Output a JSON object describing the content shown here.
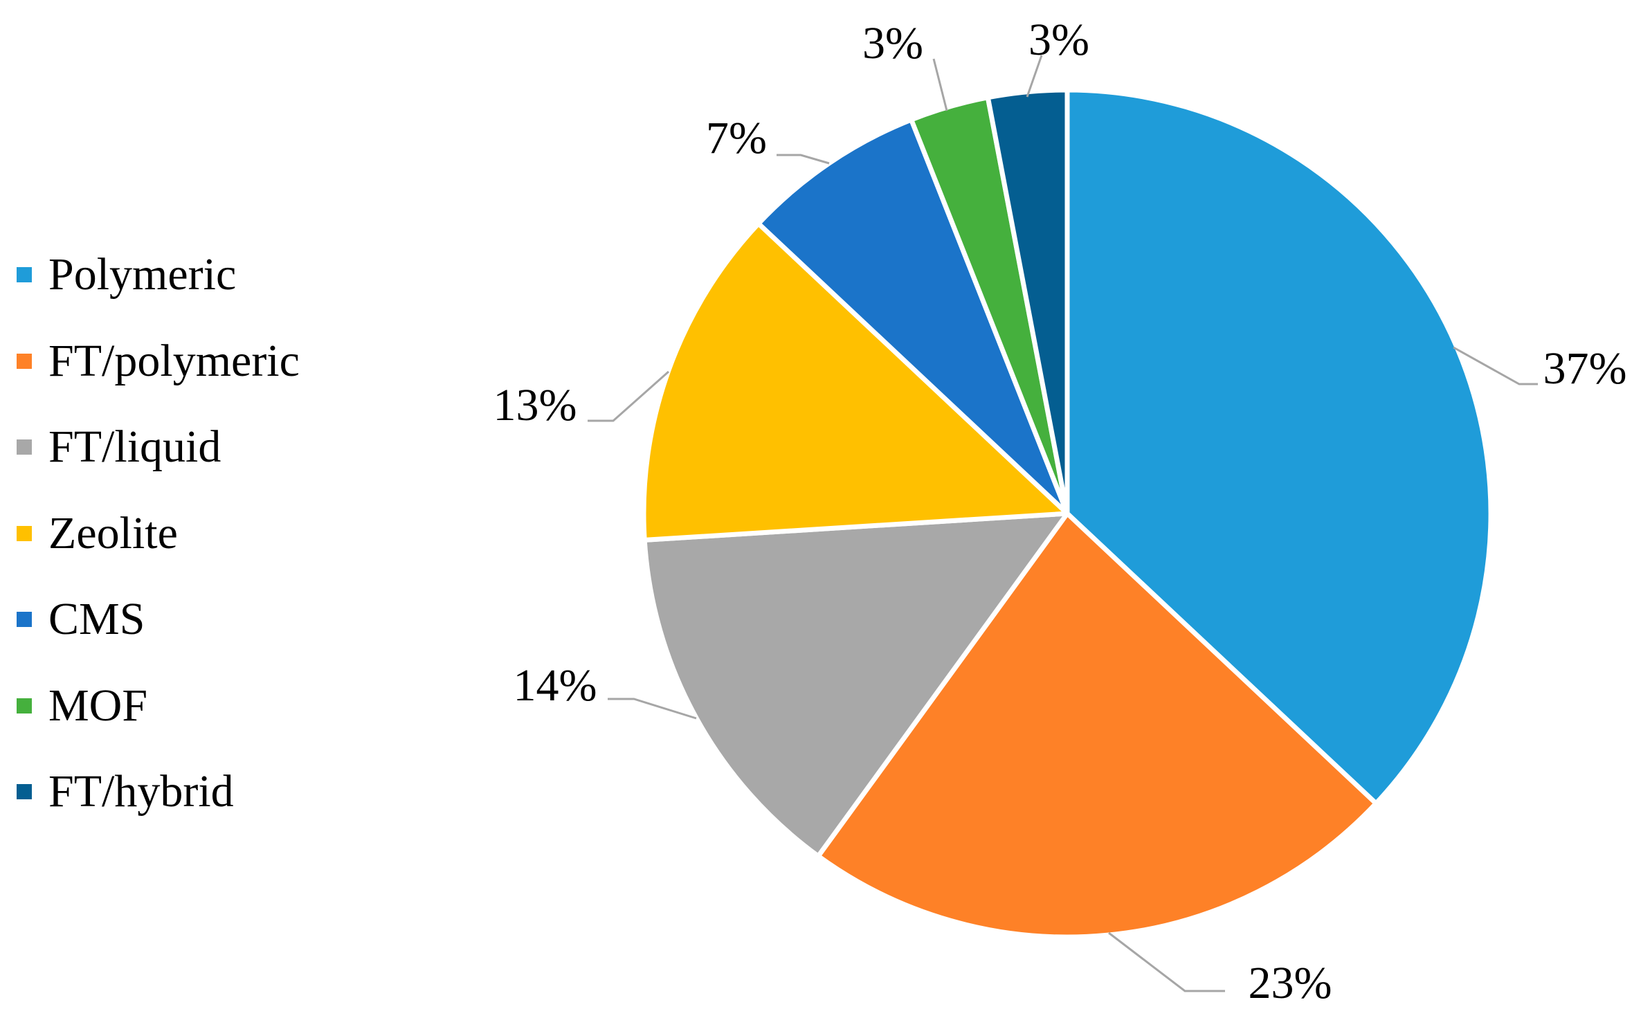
{
  "chart_data": {
    "type": "pie",
    "start_angle_deg": 0,
    "direction": "clockwise",
    "legend_position": "left",
    "slices": [
      {
        "label": "Polymeric",
        "value": 37,
        "display": "37%",
        "color": "#1F9CD9"
      },
      {
        "label": "FT/polymeric",
        "value": 23,
        "display": "23%",
        "color": "#FE8127"
      },
      {
        "label": "FT/liquid",
        "value": 14,
        "display": "14%",
        "color": "#A8A8A8"
      },
      {
        "label": "Zeolite",
        "value": 13,
        "display": "13%",
        "color": "#FFC000"
      },
      {
        "label": "CMS",
        "value": 7,
        "display": "7%",
        "color": "#1B74C9"
      },
      {
        "label": "MOF",
        "value": 3,
        "display": "3%",
        "color": "#45B03D"
      },
      {
        "label": "FT/hybrid",
        "value": 3,
        "display": "3%",
        "color": "#045E91"
      }
    ]
  }
}
